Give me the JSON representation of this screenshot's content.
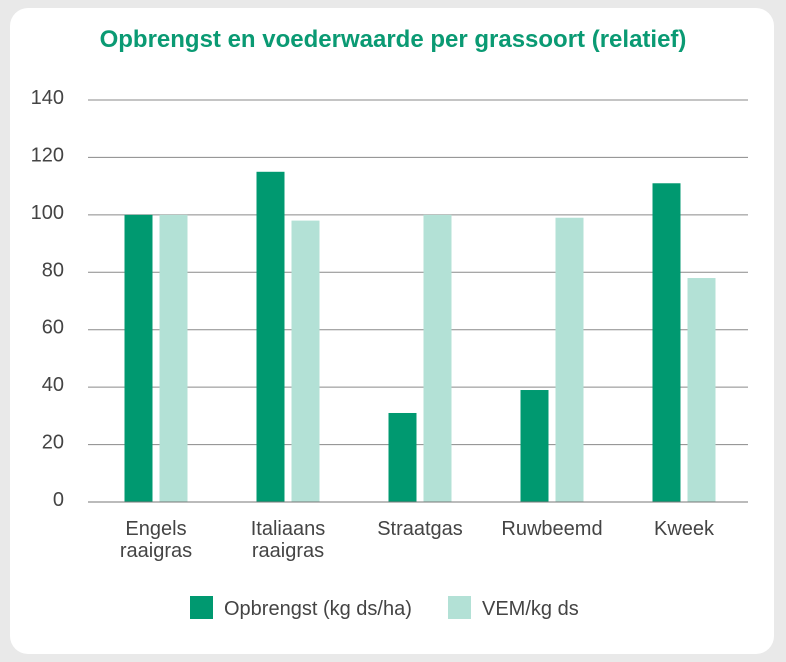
{
  "chart_data": {
    "type": "bar",
    "title": "Opbrengst en voederwaarde per grassoort (relatief)",
    "categories": [
      [
        "Engels",
        "raaigras"
      ],
      [
        "Italiaans",
        "raaigras"
      ],
      [
        "Straatgas"
      ],
      [
        "Ruwbeemd"
      ],
      [
        "Kweek"
      ]
    ],
    "series": [
      {
        "name": "Opbrengst (kg ds/ha)",
        "color": "#009970",
        "values": [
          100,
          115,
          31,
          39,
          111
        ]
      },
      {
        "name": "VEM/kg ds",
        "color": "#b3e1d6",
        "values": [
          100,
          98,
          100,
          99,
          78
        ]
      }
    ],
    "yticks": [
      "0",
      "20",
      "40",
      "60",
      "80",
      "100",
      "120",
      "140"
    ],
    "ylim": [
      0,
      140
    ],
    "grid": true,
    "legend": "bottom"
  }
}
